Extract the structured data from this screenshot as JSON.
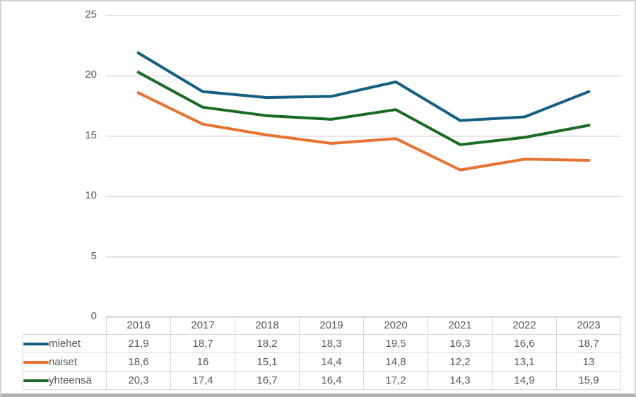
{
  "chart_data": {
    "type": "line",
    "title": "",
    "xlabel": "",
    "ylabel": "",
    "categories": [
      "2016",
      "2017",
      "2018",
      "2019",
      "2020",
      "2021",
      "2022",
      "2023"
    ],
    "series": [
      {
        "name": "miehet",
        "color": "#156082",
        "values": [
          21.9,
          18.7,
          18.2,
          18.3,
          19.5,
          16.3,
          16.6,
          18.7
        ]
      },
      {
        "name": "naiset",
        "color": "#E97132",
        "values": [
          18.6,
          16.0,
          15.1,
          14.4,
          14.8,
          12.2,
          13.1,
          13.0
        ]
      },
      {
        "name": "yhteensä",
        "color": "#196B24",
        "values": [
          20.3,
          17.4,
          16.7,
          16.4,
          17.2,
          14.3,
          14.9,
          15.9
        ]
      }
    ],
    "ylim": [
      0,
      25
    ],
    "yticks": [
      0,
      5,
      10,
      15,
      20,
      25
    ],
    "grid": true,
    "grid_color": "#d9d9d9",
    "legend_position": "table-left",
    "text_color": "#595959"
  },
  "table": {
    "years": [
      "2016",
      "2017",
      "2018",
      "2019",
      "2020",
      "2021",
      "2022",
      "2023"
    ],
    "rows": [
      {
        "label": "miehet",
        "color": "#156082",
        "values": [
          "21,9",
          "18,7",
          "18,2",
          "18,3",
          "19,5",
          "16,3",
          "16,6",
          "18,7"
        ]
      },
      {
        "label": "naiset",
        "color": "#E97132",
        "values": [
          "18,6",
          "16",
          "15,1",
          "14,4",
          "14,8",
          "12,2",
          "13,1",
          "13"
        ]
      },
      {
        "label": "yhteensä",
        "color": "#196B24",
        "values": [
          "20,3",
          "17,4",
          "16,7",
          "16,4",
          "17,2",
          "14,3",
          "14,9",
          "15,9"
        ]
      }
    ]
  }
}
